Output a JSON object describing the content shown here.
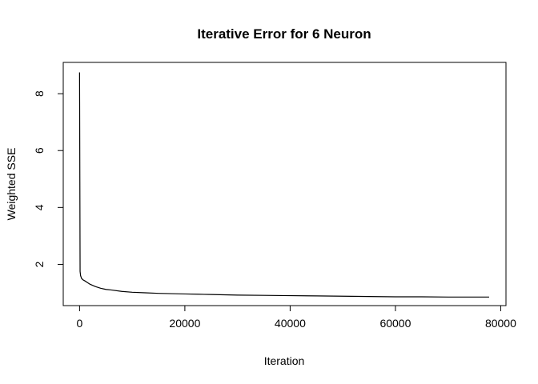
{
  "chart_data": {
    "type": "line",
    "title": "Iterative Error for 6 Neuron",
    "xlabel": "Iteration",
    "ylabel": "Weighted SSE",
    "xlim": [
      -3100,
      81000
    ],
    "ylim": [
      0.55,
      9.1
    ],
    "x_ticks": [
      0,
      20000,
      40000,
      60000,
      80000
    ],
    "x_tick_labels": [
      "0",
      "20000",
      "40000",
      "60000",
      "80000"
    ],
    "y_ticks": [
      2,
      4,
      6,
      8
    ],
    "y_tick_labels": [
      "2",
      "4",
      "6",
      "8"
    ],
    "grid": false,
    "line_color": "#000000",
    "series": [
      {
        "x": [
          0,
          100,
          200,
          400,
          700,
          1000,
          1500,
          2000,
          3000,
          4000,
          5000,
          6000,
          8000,
          10000,
          12500,
          15000,
          17500,
          20000,
          22500,
          25000,
          27500,
          30000,
          35000,
          40000,
          45000,
          50000,
          55000,
          60000,
          65000,
          70000,
          75000,
          77800
        ],
        "y": [
          8.75,
          1.75,
          1.6,
          1.5,
          1.45,
          1.42,
          1.36,
          1.3,
          1.22,
          1.16,
          1.12,
          1.1,
          1.05,
          1.02,
          1.0,
          0.98,
          0.97,
          0.96,
          0.95,
          0.94,
          0.93,
          0.92,
          0.91,
          0.9,
          0.89,
          0.88,
          0.87,
          0.86,
          0.86,
          0.85,
          0.85,
          0.85
        ]
      }
    ]
  }
}
